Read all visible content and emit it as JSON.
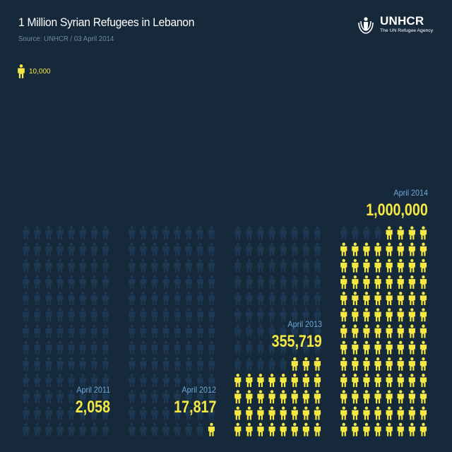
{
  "header": {
    "title": "1 Million Syrian Refugees in Lebanon",
    "subtitle": "Source: UNHCR / 03 April 2014"
  },
  "logo": {
    "name": "UNHCR",
    "tagline": "The UN Refugee Agency"
  },
  "legend": {
    "label": "10,000",
    "icon": "person-icon"
  },
  "colors": {
    "background": "#16293a",
    "person_filled": "#f5e842",
    "person_ghost": "#1c3852",
    "date_label": "#6fa8d8",
    "subtitle": "#6b8aa5",
    "value_label": "#f5e842"
  },
  "chart_data": {
    "type": "bar",
    "unit_per_icon": 10000,
    "categories": [
      "April 2011",
      "April 2012",
      "April 2013",
      "April 2014"
    ],
    "value_labels": [
      "2,058",
      "17,817",
      "355,719",
      "1,000,000"
    ],
    "values": [
      2058,
      17817,
      355719,
      1000000
    ],
    "icons_per_row": 8,
    "title": "1 Million Syrian Refugees in Lebanon",
    "xlabel": "",
    "ylabel": "",
    "grid": false,
    "legend_position": "top-left"
  }
}
